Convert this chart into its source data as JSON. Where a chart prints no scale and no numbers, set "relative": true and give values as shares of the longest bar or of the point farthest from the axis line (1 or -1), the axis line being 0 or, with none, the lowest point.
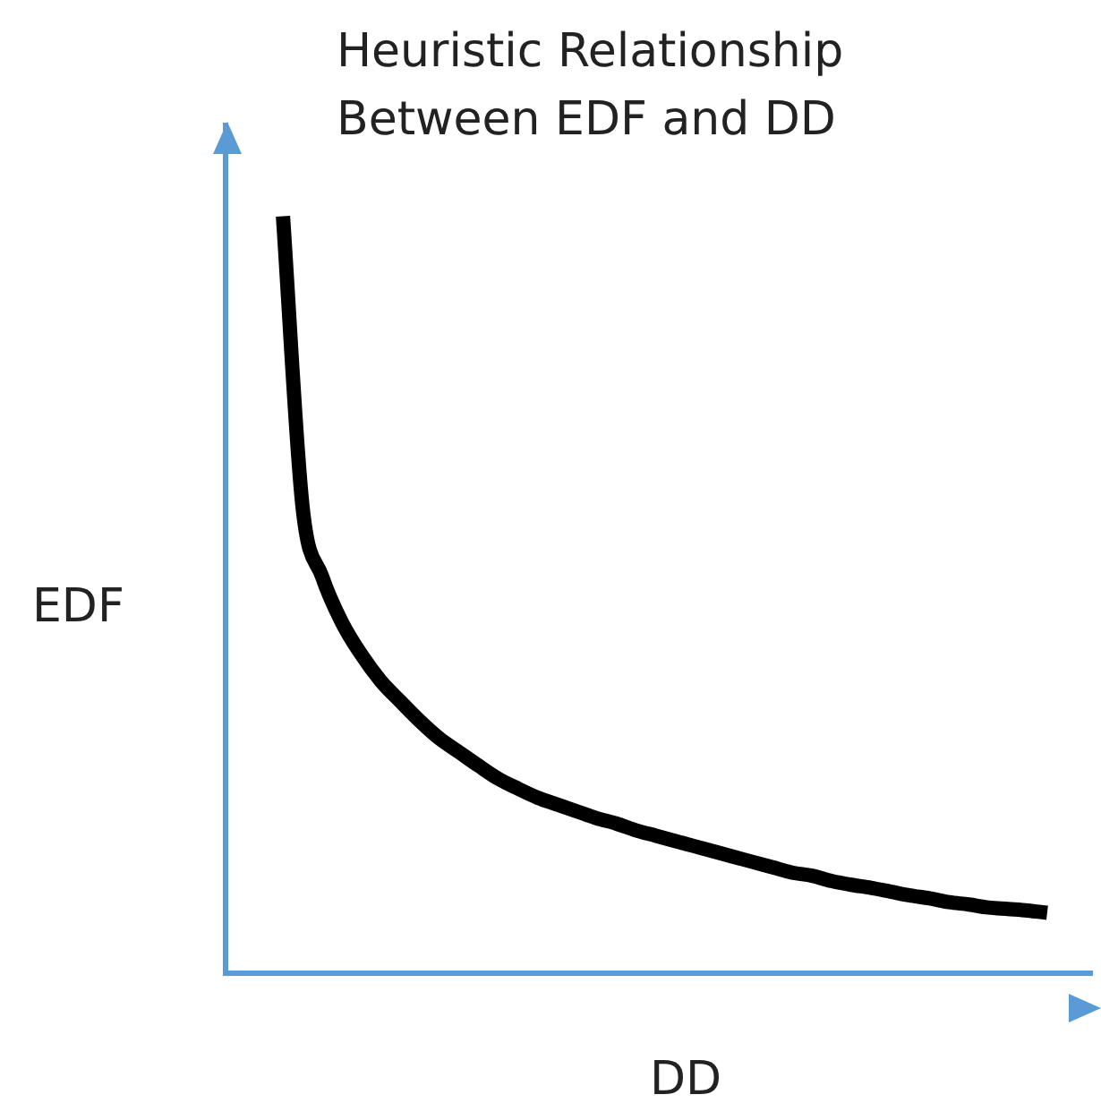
{
  "chart_data": {
    "type": "line",
    "title": "Heuristic Relationship Between EDF and DD",
    "xlabel": "DD",
    "ylabel": "EDF",
    "relative": true,
    "grid": false,
    "legend": false,
    "categories": [
      null,
      null,
      null,
      null,
      null,
      null,
      null,
      null,
      null,
      null,
      null,
      null,
      null,
      null,
      null,
      null,
      null,
      null,
      null,
      null,
      null,
      null,
      null,
      null,
      null,
      null,
      null,
      null,
      null,
      null,
      null,
      null,
      null,
      null,
      null,
      null,
      null,
      null,
      null,
      null
    ],
    "series": [
      {
        "color": "#000000",
        "values": [
          1.0,
          0.616,
          0.524,
          0.464,
          0.421,
          0.386,
          0.359,
          0.333,
          0.31,
          0.292,
          0.274,
          0.257,
          0.244,
          0.232,
          0.223,
          0.214,
          0.205,
          0.198,
          0.189,
          0.182,
          0.175,
          0.168,
          0.161,
          0.154,
          0.147,
          0.14,
          0.133,
          0.129,
          0.122,
          0.117,
          0.113,
          0.108,
          0.103,
          0.099,
          0.094,
          0.091,
          0.087,
          0.085,
          0.083,
          0.08
        ]
      }
    ]
  }
}
